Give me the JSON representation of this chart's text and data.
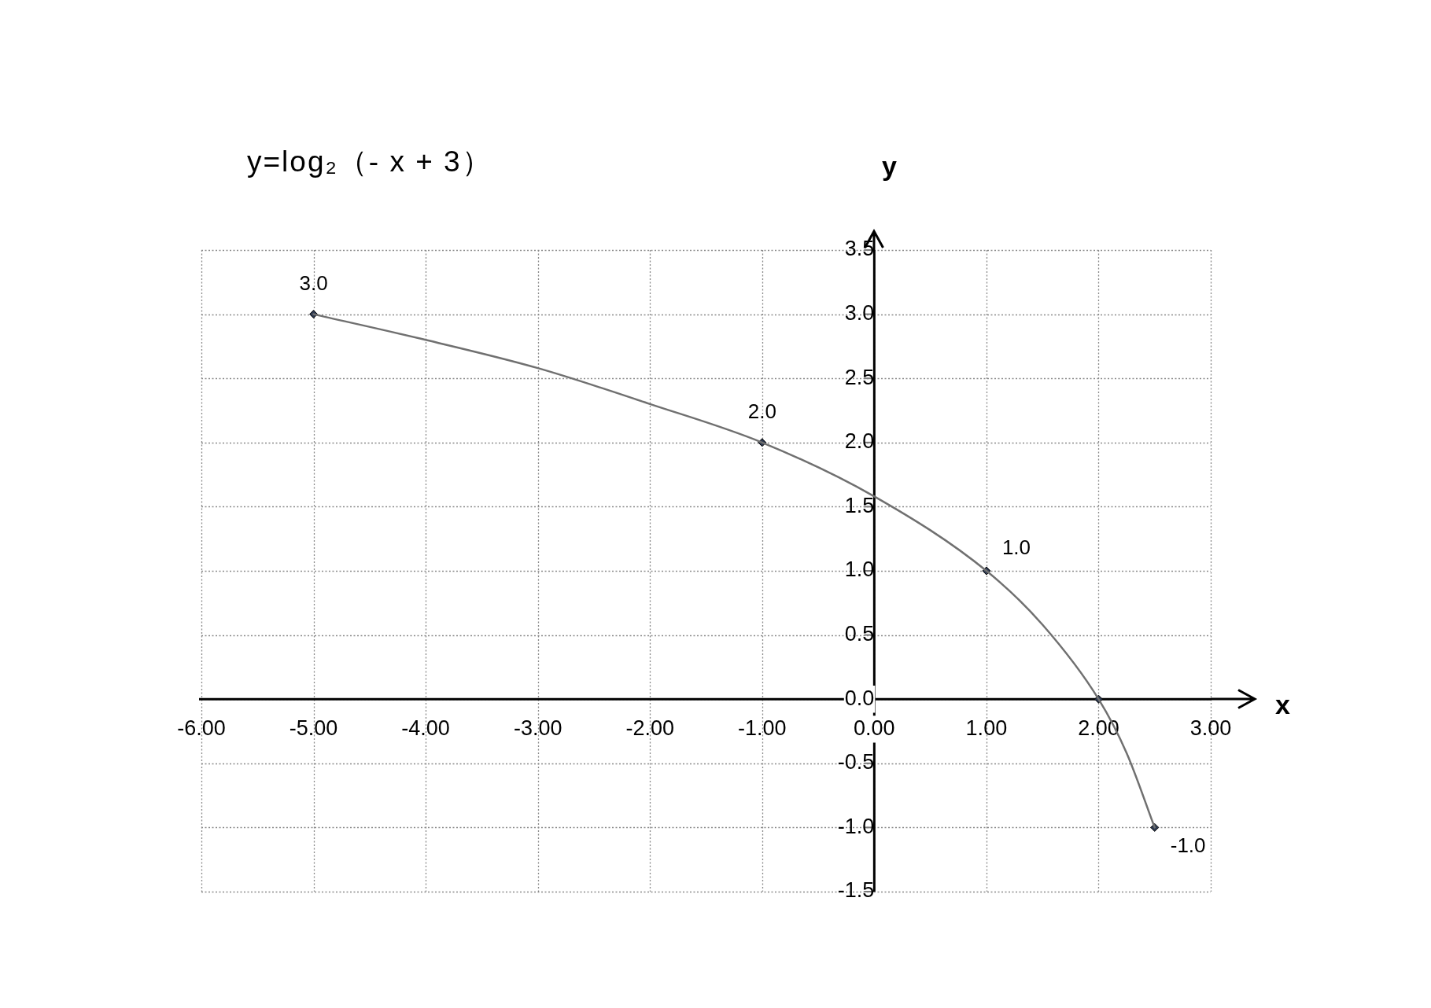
{
  "chart_data": {
    "type": "line",
    "title": "y=log₂（- x + 3）",
    "xlabel": "x",
    "ylabel": "y",
    "series": [
      {
        "color": "#707070",
        "x": [
          -5,
          -4,
          -3,
          -2,
          -1,
          0,
          1,
          1.5,
          2,
          2.25,
          2.5
        ],
        "values": [
          3,
          2.8,
          2.58,
          2.3,
          2,
          1.58,
          1,
          0.58,
          0,
          -0.42,
          -1
        ],
        "marker": "none"
      },
      {
        "type": "scatter",
        "color": "#2f3b52",
        "x": [
          -5,
          -1,
          1,
          2,
          2.5
        ],
        "values": [
          3,
          2,
          1,
          0,
          -1
        ],
        "marker": "diamond",
        "value_labels": [
          "3.0",
          "2.0",
          "1.0",
          null,
          "-1.0"
        ]
      }
    ],
    "xlim": [
      -6,
      3
    ],
    "xticks": [
      {
        "value": -6,
        "label": "-6.00"
      },
      {
        "value": -5,
        "label": "-5.00"
      },
      {
        "value": -4,
        "label": "-4.00"
      },
      {
        "value": -3,
        "label": "-3.00"
      },
      {
        "value": -2,
        "label": "-2.00"
      },
      {
        "value": -1,
        "label": "-1.00"
      },
      {
        "value": 0,
        "label": "0.00"
      },
      {
        "value": 1,
        "label": "1.00"
      },
      {
        "value": 2,
        "label": "2.00"
      },
      {
        "value": 3,
        "label": "3.00"
      }
    ],
    "ylim": [
      -1.5,
      3.5
    ],
    "yticks": [
      -1.5,
      {
        "value": -1,
        "label": "-1.0"
      },
      -0.5,
      {
        "value": 0,
        "label": "0.0"
      },
      0.5,
      {
        "value": 1,
        "label": "1.0"
      },
      1.5,
      {
        "value": 2,
        "label": "2.0"
      },
      2.5,
      {
        "value": 3,
        "label": "3.0"
      },
      3.5
    ],
    "grid": true
  }
}
